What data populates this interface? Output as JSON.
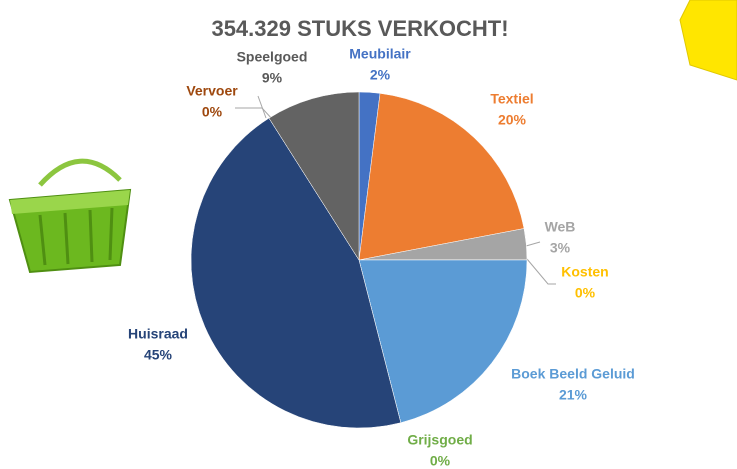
{
  "chart_data": {
    "type": "pie",
    "title": "354.329 STUKS VERKOCHT!",
    "categories": [
      "Meubilair",
      "Textiel",
      "WeB",
      "Kosten",
      "Boek Beeld Geluid",
      "Grijsgoed",
      "Huisraad",
      "Vervoer",
      "Speelgoed"
    ],
    "values": [
      2,
      20,
      3,
      0,
      21,
      0,
      45,
      0,
      9
    ],
    "value_labels": [
      "2%",
      "20%",
      "3%",
      "0%",
      "21%",
      "0%",
      "45%",
      "0%",
      "9%"
    ],
    "colors": [
      "#4472c4",
      "#ed7d31",
      "#a5a5a5",
      "#ffc000",
      "#5b9bd5",
      "#70ad47",
      "#264478",
      "#9e480e",
      "#636363"
    ]
  }
}
